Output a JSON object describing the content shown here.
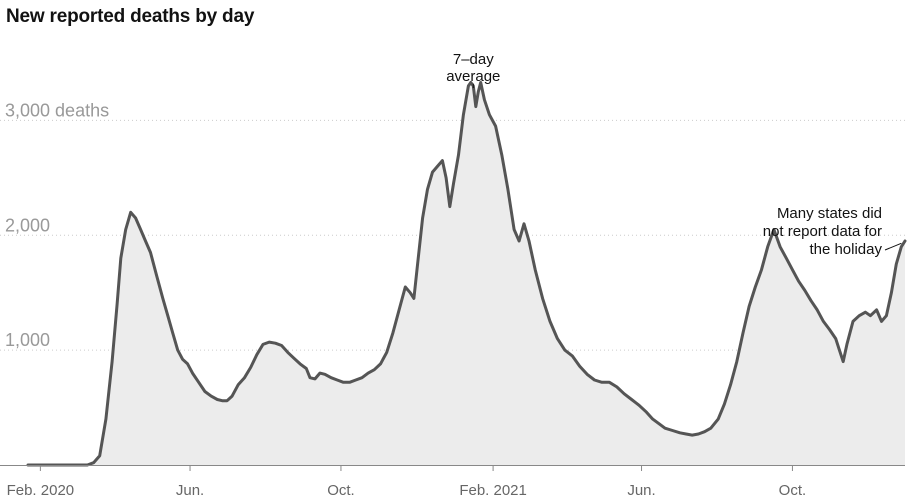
{
  "chart_data": {
    "type": "area",
    "title": "New reported deaths by day",
    "y_ticks": [
      {
        "value": 1000,
        "label": "1,000"
      },
      {
        "value": 2000,
        "label": "2,000"
      },
      {
        "value": 3000,
        "label": "3,000 deaths"
      }
    ],
    "x_ticks": [
      {
        "date": "2020-02-01",
        "label": "Feb. 2020"
      },
      {
        "date": "2020-06-01",
        "label": "Jun."
      },
      {
        "date": "2020-10-01",
        "label": "Oct."
      },
      {
        "date": "2021-02-01",
        "label": "Feb. 2021"
      },
      {
        "date": "2021-06-01",
        "label": "Jun."
      },
      {
        "date": "2021-10-01",
        "label": "Oct."
      }
    ],
    "ylim": [
      0,
      3700
    ],
    "xlim": [
      "2020-01-22",
      "2021-12-31"
    ],
    "grid": true,
    "series": [
      {
        "points": [
          [
            "2020-01-22",
            0
          ],
          [
            "2020-02-15",
            0
          ],
          [
            "2020-03-01",
            0
          ],
          [
            "2020-03-10",
            0
          ],
          [
            "2020-03-15",
            20
          ],
          [
            "2020-03-20",
            80
          ],
          [
            "2020-03-25",
            400
          ],
          [
            "2020-03-30",
            900
          ],
          [
            "2020-04-03",
            1400
          ],
          [
            "2020-04-06",
            1800
          ],
          [
            "2020-04-10",
            2050
          ],
          [
            "2020-04-14",
            2200
          ],
          [
            "2020-04-18",
            2150
          ],
          [
            "2020-04-22",
            2050
          ],
          [
            "2020-04-26",
            1950
          ],
          [
            "2020-04-30",
            1850
          ],
          [
            "2020-05-05",
            1650
          ],
          [
            "2020-05-10",
            1450
          ],
          [
            "2020-05-14",
            1300
          ],
          [
            "2020-05-18",
            1150
          ],
          [
            "2020-05-22",
            1000
          ],
          [
            "2020-05-26",
            920
          ],
          [
            "2020-05-30",
            880
          ],
          [
            "2020-06-03",
            800
          ],
          [
            "2020-06-08",
            720
          ],
          [
            "2020-06-13",
            640
          ],
          [
            "2020-06-18",
            600
          ],
          [
            "2020-06-23",
            570
          ],
          [
            "2020-06-27",
            560
          ],
          [
            "2020-07-01",
            560
          ],
          [
            "2020-07-05",
            600
          ],
          [
            "2020-07-10",
            700
          ],
          [
            "2020-07-15",
            760
          ],
          [
            "2020-07-20",
            850
          ],
          [
            "2020-07-25",
            960
          ],
          [
            "2020-07-30",
            1050
          ],
          [
            "2020-08-04",
            1070
          ],
          [
            "2020-08-09",
            1060
          ],
          [
            "2020-08-14",
            1040
          ],
          [
            "2020-08-19",
            980
          ],
          [
            "2020-08-24",
            930
          ],
          [
            "2020-08-29",
            880
          ],
          [
            "2020-09-03",
            840
          ],
          [
            "2020-09-06",
            760
          ],
          [
            "2020-09-10",
            750
          ],
          [
            "2020-09-14",
            800
          ],
          [
            "2020-09-18",
            790
          ],
          [
            "2020-09-23",
            760
          ],
          [
            "2020-09-28",
            740
          ],
          [
            "2020-10-03",
            720
          ],
          [
            "2020-10-08",
            720
          ],
          [
            "2020-10-13",
            740
          ],
          [
            "2020-10-18",
            760
          ],
          [
            "2020-10-23",
            800
          ],
          [
            "2020-10-28",
            830
          ],
          [
            "2020-11-02",
            880
          ],
          [
            "2020-11-07",
            980
          ],
          [
            "2020-11-12",
            1150
          ],
          [
            "2020-11-17",
            1350
          ],
          [
            "2020-11-22",
            1550
          ],
          [
            "2020-11-26",
            1500
          ],
          [
            "2020-11-29",
            1450
          ],
          [
            "2020-12-02",
            1750
          ],
          [
            "2020-12-06",
            2150
          ],
          [
            "2020-12-10",
            2400
          ],
          [
            "2020-12-14",
            2550
          ],
          [
            "2020-12-18",
            2600
          ],
          [
            "2020-12-22",
            2650
          ],
          [
            "2020-12-25",
            2500
          ],
          [
            "2020-12-28",
            2250
          ],
          [
            "2020-12-31",
            2450
          ],
          [
            "2021-01-04",
            2700
          ],
          [
            "2021-01-08",
            3050
          ],
          [
            "2021-01-12",
            3300
          ],
          [
            "2021-01-14",
            3330
          ],
          [
            "2021-01-16",
            3300
          ],
          [
            "2021-01-18",
            3120
          ],
          [
            "2021-01-20",
            3250
          ],
          [
            "2021-01-22",
            3330
          ],
          [
            "2021-01-25",
            3180
          ],
          [
            "2021-01-29",
            3050
          ],
          [
            "2021-02-03",
            2950
          ],
          [
            "2021-02-08",
            2700
          ],
          [
            "2021-02-13",
            2400
          ],
          [
            "2021-02-18",
            2050
          ],
          [
            "2021-02-22",
            1950
          ],
          [
            "2021-02-26",
            2100
          ],
          [
            "2021-03-02",
            1950
          ],
          [
            "2021-03-07",
            1700
          ],
          [
            "2021-03-13",
            1450
          ],
          [
            "2021-03-19",
            1250
          ],
          [
            "2021-03-25",
            1100
          ],
          [
            "2021-03-31",
            1000
          ],
          [
            "2021-04-06",
            950
          ],
          [
            "2021-04-12",
            860
          ],
          [
            "2021-04-18",
            790
          ],
          [
            "2021-04-24",
            740
          ],
          [
            "2021-04-30",
            720
          ],
          [
            "2021-05-06",
            720
          ],
          [
            "2021-05-12",
            680
          ],
          [
            "2021-05-18",
            620
          ],
          [
            "2021-05-24",
            570
          ],
          [
            "2021-05-30",
            520
          ],
          [
            "2021-06-05",
            460
          ],
          [
            "2021-06-10",
            400
          ],
          [
            "2021-06-15",
            360
          ],
          [
            "2021-06-20",
            320
          ],
          [
            "2021-06-26",
            300
          ],
          [
            "2021-07-02",
            280
          ],
          [
            "2021-07-07",
            270
          ],
          [
            "2021-07-12",
            260
          ],
          [
            "2021-07-17",
            270
          ],
          [
            "2021-07-22",
            290
          ],
          [
            "2021-07-27",
            320
          ],
          [
            "2021-08-02",
            400
          ],
          [
            "2021-08-07",
            530
          ],
          [
            "2021-08-12",
            700
          ],
          [
            "2021-08-17",
            900
          ],
          [
            "2021-08-22",
            1150
          ],
          [
            "2021-08-27",
            1380
          ],
          [
            "2021-09-01",
            1550
          ],
          [
            "2021-09-06",
            1700
          ],
          [
            "2021-09-11",
            1900
          ],
          [
            "2021-09-16",
            2050
          ],
          [
            "2021-09-21",
            1900
          ],
          [
            "2021-09-26",
            1800
          ],
          [
            "2021-10-01",
            1700
          ],
          [
            "2021-10-06",
            1600
          ],
          [
            "2021-10-11",
            1520
          ],
          [
            "2021-10-16",
            1430
          ],
          [
            "2021-10-21",
            1350
          ],
          [
            "2021-10-26",
            1250
          ],
          [
            "2021-10-31",
            1180
          ],
          [
            "2021-11-05",
            1100
          ],
          [
            "2021-11-08",
            1000
          ],
          [
            "2021-11-11",
            900
          ],
          [
            "2021-11-14",
            1050
          ],
          [
            "2021-11-19",
            1250
          ],
          [
            "2021-11-24",
            1300
          ],
          [
            "2021-11-29",
            1330
          ],
          [
            "2021-12-03",
            1300
          ],
          [
            "2021-12-08",
            1350
          ],
          [
            "2021-12-12",
            1250
          ],
          [
            "2021-12-16",
            1300
          ],
          [
            "2021-12-20",
            1500
          ],
          [
            "2021-12-24",
            1750
          ],
          [
            "2021-12-28",
            1900
          ],
          [
            "2021-12-31",
            1950
          ]
        ]
      }
    ],
    "annotations": [
      {
        "lines": [
          "7–day",
          "average"
        ],
        "date": "2021-01-16",
        "value": 3320
      },
      {
        "lines": [
          "Many states did",
          "not report data for",
          "the holiday"
        ],
        "date": "2021-12-28",
        "value": 1930
      }
    ],
    "colors": {
      "line": "#555555",
      "fill": "#ececec",
      "grid": "#cccccc",
      "baseline": "#888888"
    }
  }
}
